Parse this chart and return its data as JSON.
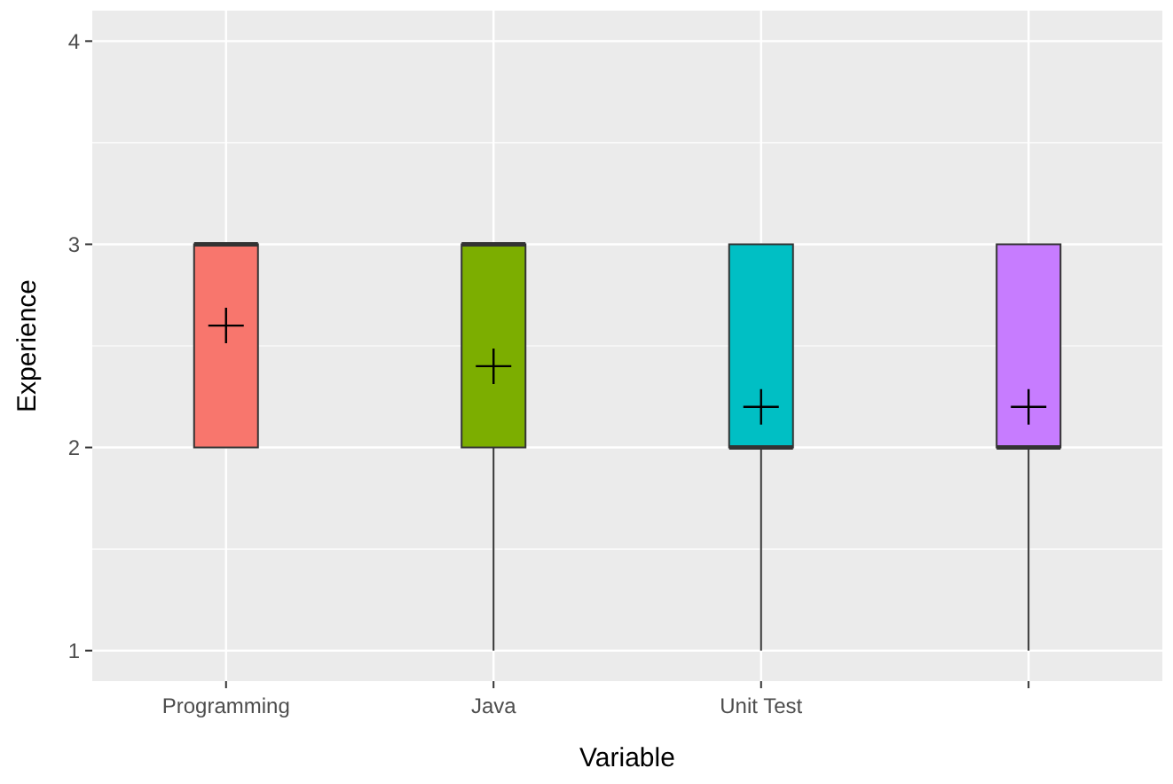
{
  "chart_data": {
    "type": "box",
    "xlabel": "Variable",
    "ylabel": "Experience",
    "categories": [
      "Programming",
      "Java",
      "Unit Test",
      null
    ],
    "colors": [
      "#f8766d",
      "#7cae00",
      "#00bfc4",
      "#c77cff"
    ],
    "boxes": [
      {
        "low": 2,
        "q1": 2,
        "median": 3,
        "q3": 3,
        "high": 3,
        "mean": 2.6
      },
      {
        "low": 1,
        "q1": 2,
        "median": 3,
        "q3": 3,
        "high": 3,
        "mean": 2.4
      },
      {
        "low": 1,
        "q1": 2,
        "median": 2,
        "q3": 3,
        "high": 3,
        "mean": 2.2
      },
      {
        "low": 1,
        "q1": 2,
        "median": 2,
        "q3": 3,
        "high": 3,
        "mean": 2.2
      }
    ],
    "ylim": [
      0.85,
      4.15
    ],
    "yticks": [
      1,
      2,
      3,
      4
    ],
    "grid": true,
    "marker": "cross"
  }
}
